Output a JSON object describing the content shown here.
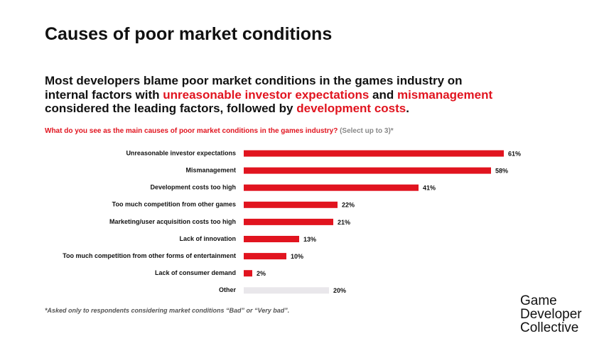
{
  "chart_data": {
    "type": "hbar",
    "title": "Causes of poor market conditions",
    "subtitle": [
      [
        {
          "text": "Most developers blame poor market conditions in the games industry on",
          "highlight": false
        }
      ],
      [
        {
          "text": "internal factors with ",
          "highlight": false
        },
        {
          "text": "unreasonable investor expectations",
          "highlight": true
        },
        {
          "text": " and ",
          "highlight": false
        },
        {
          "text": "mismanagement",
          "highlight": true
        }
      ],
      [
        {
          "text": "considered the leading factors, followed by ",
          "highlight": false
        },
        {
          "text": "development costs",
          "highlight": true
        },
        {
          "text": ".",
          "highlight": false
        }
      ]
    ],
    "question": "What do you see as the main causes of poor market conditions in the games industry?",
    "question_note": "(Select up to 3)*",
    "categories": [
      "Unreasonable investor expectations",
      "Mismanagement",
      "Development costs too high",
      "Too much competition from other games",
      "Marketing/user acquisition costs too high",
      "Lack of innovation",
      "Too much competition from other forms of entertainment",
      "Lack of consumer demand",
      "Other"
    ],
    "values": [
      61,
      58,
      41,
      22,
      21,
      13,
      10,
      2,
      20
    ],
    "value_labels": [
      "61%",
      "58%",
      "41%",
      "22%",
      "21%",
      "13%",
      "10%",
      "2%",
      "20%"
    ],
    "colors": [
      "#e1141f",
      "#e1141f",
      "#e1141f",
      "#e1141f",
      "#e1141f",
      "#e1141f",
      "#e1141f",
      "#e1141f",
      "#e9e7eb"
    ],
    "footnote": "*Asked only to respondents considering market conditions “Bad” or “Very bad”.",
    "logo": [
      "Game",
      "Developer",
      "Collective"
    ]
  }
}
